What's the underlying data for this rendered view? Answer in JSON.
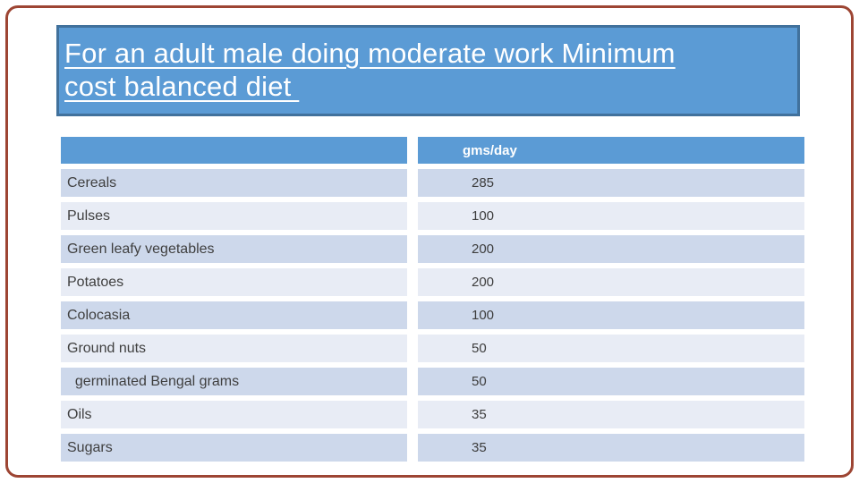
{
  "slide": {
    "title_line1": "For an adult male doing moderate work Minimum",
    "title_line2": "cost balanced diet "
  },
  "table": {
    "header": {
      "item_col_label": "",
      "value_col_label": "gms/day"
    },
    "rows": [
      {
        "label": "Cereals",
        "value": "285"
      },
      {
        "label": "Pulses",
        "value": "100"
      },
      {
        "label": "Green leafy vegetables",
        "value": "200"
      },
      {
        "label": "Potatoes",
        "value": "200"
      },
      {
        "label": "Colocasia",
        "value": "100"
      },
      {
        "label": "Ground nuts",
        "value": "50"
      },
      {
        "label": "  germinated Bengal grams",
        "value": "50"
      },
      {
        "label": "Oils",
        "value": "35"
      },
      {
        "label": "Sugars",
        "value": "35"
      }
    ]
  },
  "colors": {
    "title_fill": "#5b9bd5",
    "title_border": "#41719c",
    "header_fill": "#5b9bd5",
    "row_dark": "#cdd8eb",
    "row_light": "#e8ecf5",
    "frame_border": "#9d4533",
    "title_text": "#ffffff",
    "header_text": "#ffffff",
    "body_text": "#3f3f3f"
  }
}
